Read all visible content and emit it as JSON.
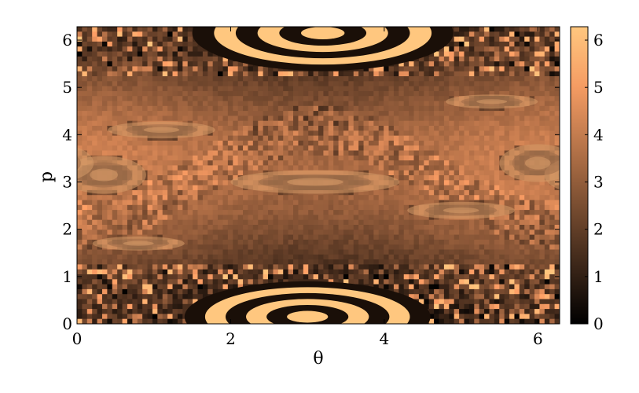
{
  "chart_data": {
    "type": "heatmap",
    "title": "",
    "xlabel": "θ",
    "ylabel": "p",
    "xlim": [
      0,
      6.2832
    ],
    "ylim": [
      0,
      6.2832
    ],
    "x_ticks": [
      "0",
      "2",
      "4",
      "6"
    ],
    "x_tick_values": [
      0,
      2,
      4,
      6
    ],
    "y_ticks": [
      "0",
      "1",
      "2",
      "3",
      "4",
      "5",
      "6"
    ],
    "y_tick_values": [
      0,
      1,
      2,
      3,
      4,
      5,
      6
    ],
    "colorbar": {
      "range": [
        0,
        6.2832
      ],
      "ticks": [
        "0",
        "1",
        "2",
        "3",
        "4",
        "5",
        "6"
      ],
      "tick_values": [
        0,
        1,
        2,
        3,
        4,
        5,
        6
      ],
      "colormap": "copper",
      "colors": [
        "#000000",
        "#ffc77f"
      ]
    },
    "islands": [
      {
        "theta": 3.0,
        "p": 0.15,
        "rx": 1.6,
        "ry": 0.75
      },
      {
        "theta": 3.2,
        "p": 6.15,
        "rx": 1.7,
        "ry": 0.8
      },
      {
        "theta": 3.1,
        "p": 3.0,
        "rx": 1.1,
        "ry": 0.25
      },
      {
        "theta": 0.35,
        "p": 3.15,
        "rx": 0.55,
        "ry": 0.4
      },
      {
        "theta": 6.0,
        "p": 3.4,
        "rx": 0.5,
        "ry": 0.4
      },
      {
        "theta": 0.8,
        "p": 1.7,
        "rx": 0.6,
        "ry": 0.15
      },
      {
        "theta": 5.4,
        "p": 4.7,
        "rx": 0.6,
        "ry": 0.15
      },
      {
        "theta": 1.1,
        "p": 4.1,
        "rx": 0.7,
        "ry": 0.18
      },
      {
        "theta": 5.0,
        "p": 2.4,
        "rx": 0.7,
        "ry": 0.18
      }
    ]
  }
}
